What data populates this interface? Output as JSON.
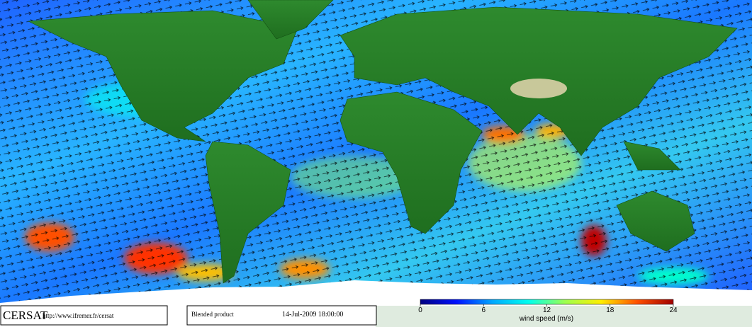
{
  "footer": {
    "logo": "CERSAT",
    "url": "http://www.ifremer.fr/cersat",
    "product": "Blended product",
    "timestamp": "14-Jul-2009 18:00:00"
  },
  "colorbar": {
    "label": "wind speed (m/s)",
    "range": [
      0,
      24
    ],
    "ticks": [
      0,
      6,
      12,
      18,
      24
    ],
    "colors": [
      "#000080",
      "#0010ff",
      "#00a8ff",
      "#00ffee",
      "#9cff50",
      "#ffee00",
      "#ff5000",
      "#a00000"
    ]
  }
}
